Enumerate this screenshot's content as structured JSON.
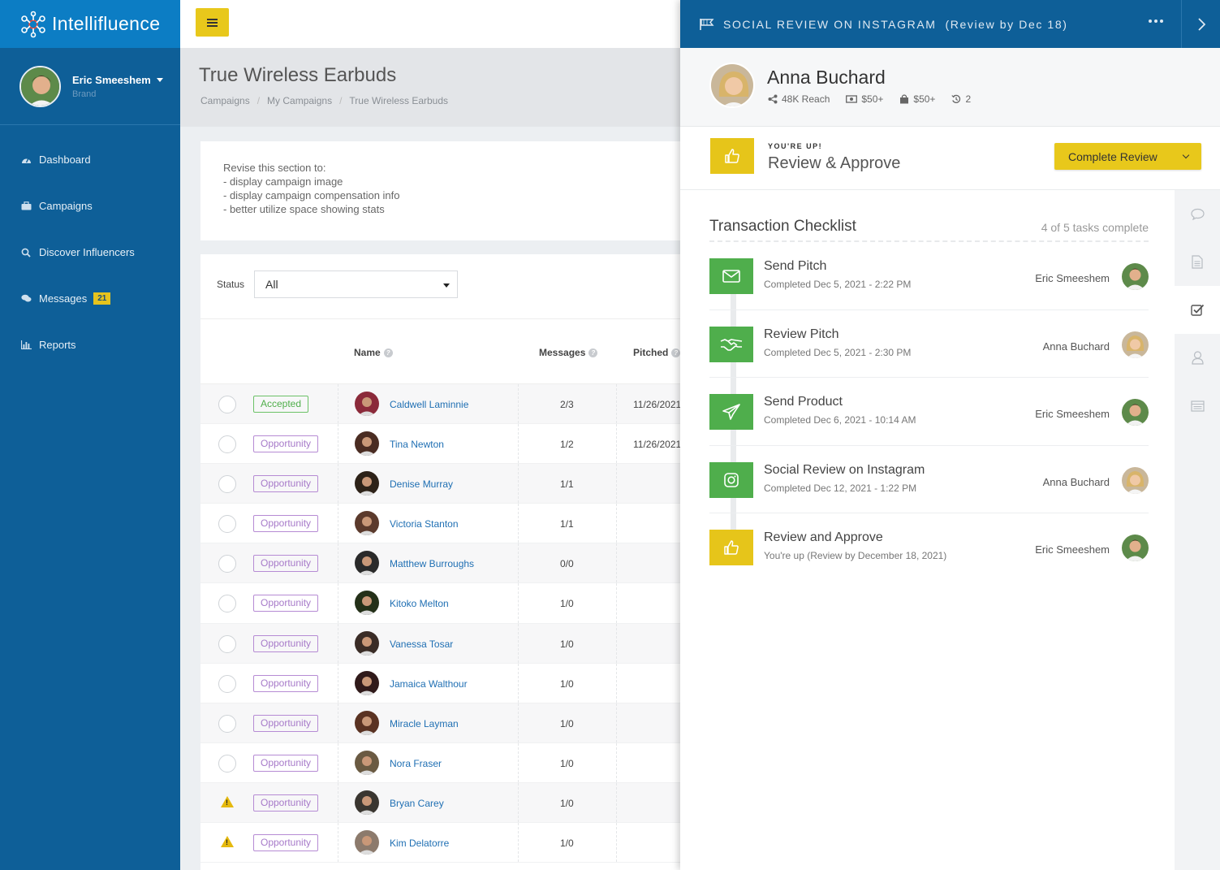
{
  "brand": {
    "name": "Intellifluence"
  },
  "user": {
    "name": "Eric Smeeshem",
    "role": "Brand"
  },
  "nav": {
    "items": [
      {
        "label": "Dashboard",
        "icon": "dashboard-icon"
      },
      {
        "label": "Campaigns",
        "icon": "briefcase-icon"
      },
      {
        "label": "Discover Influencers",
        "icon": "search-icon"
      },
      {
        "label": "Messages",
        "icon": "chat-icon",
        "badge": "21"
      },
      {
        "label": "Reports",
        "icon": "bar-chart-icon"
      }
    ]
  },
  "page": {
    "title": "True Wireless Earbuds",
    "breadcrumb": [
      "Campaigns",
      "My Campaigns",
      "True Wireless Earbuds"
    ]
  },
  "notes": {
    "lines": [
      "Revise this section to:",
      "- display campaign image",
      "- display campaign compensation info",
      "- better utilize space showing stats"
    ]
  },
  "filter": {
    "label": "Status",
    "value": "All"
  },
  "table": {
    "columns": {
      "name": "Name",
      "messages": "Messages",
      "pitched": "Pitched"
    },
    "rows": [
      {
        "status": "Accepted",
        "name": "Caldwell Laminnie",
        "messages": "2/3",
        "pitched": "11/26/2021",
        "warn": false
      },
      {
        "status": "Opportunity",
        "name": "Tina Newton",
        "messages": "1/2",
        "pitched": "11/26/2021",
        "warn": false
      },
      {
        "status": "Opportunity",
        "name": "Denise Murray",
        "messages": "1/1",
        "pitched": "",
        "warn": false
      },
      {
        "status": "Opportunity",
        "name": "Victoria Stanton",
        "messages": "1/1",
        "pitched": "",
        "warn": false
      },
      {
        "status": "Opportunity",
        "name": "Matthew Burroughs",
        "messages": "0/0",
        "pitched": "",
        "warn": false
      },
      {
        "status": "Opportunity",
        "name": "Kitoko Melton",
        "messages": "1/0",
        "pitched": "",
        "warn": false
      },
      {
        "status": "Opportunity",
        "name": "Vanessa Tosar",
        "messages": "1/0",
        "pitched": "",
        "warn": false
      },
      {
        "status": "Opportunity",
        "name": "Jamaica Walthour",
        "messages": "1/0",
        "pitched": "",
        "warn": false
      },
      {
        "status": "Opportunity",
        "name": "Miracle Layman",
        "messages": "1/0",
        "pitched": "",
        "warn": false
      },
      {
        "status": "Opportunity",
        "name": "Nora Fraser",
        "messages": "1/0",
        "pitched": "",
        "warn": false
      },
      {
        "status": "Opportunity",
        "name": "Bryan Carey",
        "messages": "1/0",
        "pitched": "",
        "warn": true
      },
      {
        "status": "Opportunity",
        "name": "Kim Delatorre",
        "messages": "1/0",
        "pitched": "",
        "warn": true
      }
    ]
  },
  "panel": {
    "title": "SOCIAL REVIEW ON INSTAGRAM",
    "subtitle": "(Review by Dec 18)",
    "influencer": {
      "name": "Anna Buchard",
      "reach": "48K Reach",
      "price1": "$50+",
      "price2": "$50+",
      "count": "2"
    },
    "banner": {
      "kicker": "YOU'RE UP!",
      "title": "Review & Approve",
      "button": "Complete Review"
    },
    "checklist": {
      "title": "Transaction Checklist",
      "count": "4 of 5 tasks complete",
      "tasks": [
        {
          "title": "Send Pitch",
          "sub": "Completed Dec 5, 2021 - 2:22 PM",
          "assignee": "Eric Smeeshem",
          "icon": "envelope-icon",
          "color": "green"
        },
        {
          "title": "Review Pitch",
          "sub": "Completed Dec 5, 2021 - 2:30 PM",
          "assignee": "Anna Buchard",
          "icon": "handshake-icon",
          "color": "green"
        },
        {
          "title": "Send Product",
          "sub": "Completed Dec 6, 2021 - 10:14 AM",
          "assignee": "Eric Smeeshem",
          "icon": "paper-plane-icon",
          "color": "green"
        },
        {
          "title": "Social Review on Instagram",
          "sub": "Completed Dec 12, 2021 - 1:22 PM",
          "assignee": "Anna Buchard",
          "icon": "instagram-icon",
          "color": "green"
        },
        {
          "title": "Review and Approve",
          "sub": "You're up (Review by December 18, 2021)",
          "assignee": "Eric Smeeshem",
          "icon": "thumbs-up-icon",
          "color": "yellow"
        }
      ]
    }
  },
  "colors": {
    "sidebar": "#0e5f98",
    "brand": "#0c7dc4",
    "accent": "#e8c81b",
    "success": "#4fae4c",
    "link": "#1f6fb3",
    "opportunity": "#a77ac9"
  }
}
